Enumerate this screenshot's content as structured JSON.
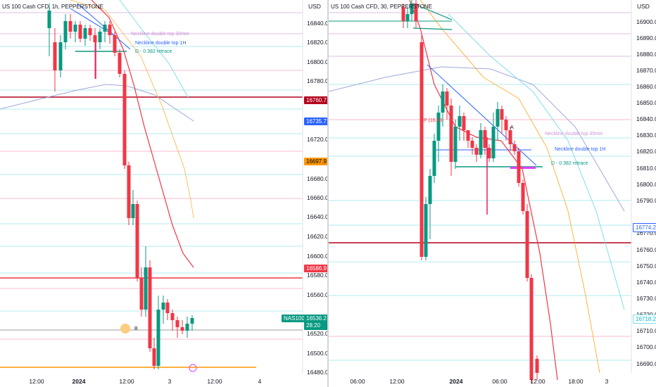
{
  "left_chart": {
    "title": "US 100 Cash CFD, 1h, PEPPERSTONE",
    "currency": "USD",
    "y_ticks": [
      "16840.0",
      "16820.0",
      "16800.0",
      "16780.0",
      "16720.0",
      "16680.0",
      "16660.0",
      "16640.0",
      "16620.0",
      "16600.0",
      "16580.0",
      "16560.0",
      "16520.0",
      "16500.0",
      "16480.0"
    ],
    "x_ticks": [
      "12:00",
      "2024",
      "12:00",
      "3",
      "12:00",
      "4"
    ],
    "annotations": {
      "neck30": "Neckline double top 30min",
      "neck1h": "Neckline double top 1H",
      "retrace": "D - 0.382 retrace",
      "b_label": "B"
    },
    "price_tags": {
      "top_red": "16760.7",
      "blue": "16735.7",
      "orange": "16697.9",
      "low_red": "16586.9",
      "symbol": "NAS100",
      "last": "16536.2",
      "countdown": "28:20"
    },
    "colors": {
      "up": "#089981",
      "down": "#f23645",
      "red_line": "#b2001a",
      "orange_line": "#ff9800",
      "blue_tag": "#2962ff"
    }
  },
  "right_chart": {
    "title": "US 100 Cash CFD, 30, PEPPERSTONE",
    "currency": "USD",
    "y_ticks": [
      "16900.0",
      "16890.0",
      "16880.0",
      "16870.0",
      "16860.0",
      "16850.0",
      "16840.0",
      "16830.0",
      "16820.0",
      "16810.0",
      "16800.0",
      "16790.0",
      "16770.0",
      "16760.0",
      "16750.0",
      "16740.0",
      "16730.0",
      "16720.0",
      "16710.0",
      "16700.0",
      "16690.0"
    ],
    "x_ticks": [
      "06:00",
      "12:00",
      "2024",
      "06:00",
      "12:00",
      "18:00",
      "3"
    ],
    "annotations": {
      "p_label": "P (16,83",
      "a_label": "A",
      "neck30": "Neckline double top 30min",
      "neck1h": "Neckline double top 1H",
      "retrace": "D - 0.382 retrace"
    },
    "price_tags": {
      "box": "16774.2",
      "cyan": "16718.2"
    }
  }
}
